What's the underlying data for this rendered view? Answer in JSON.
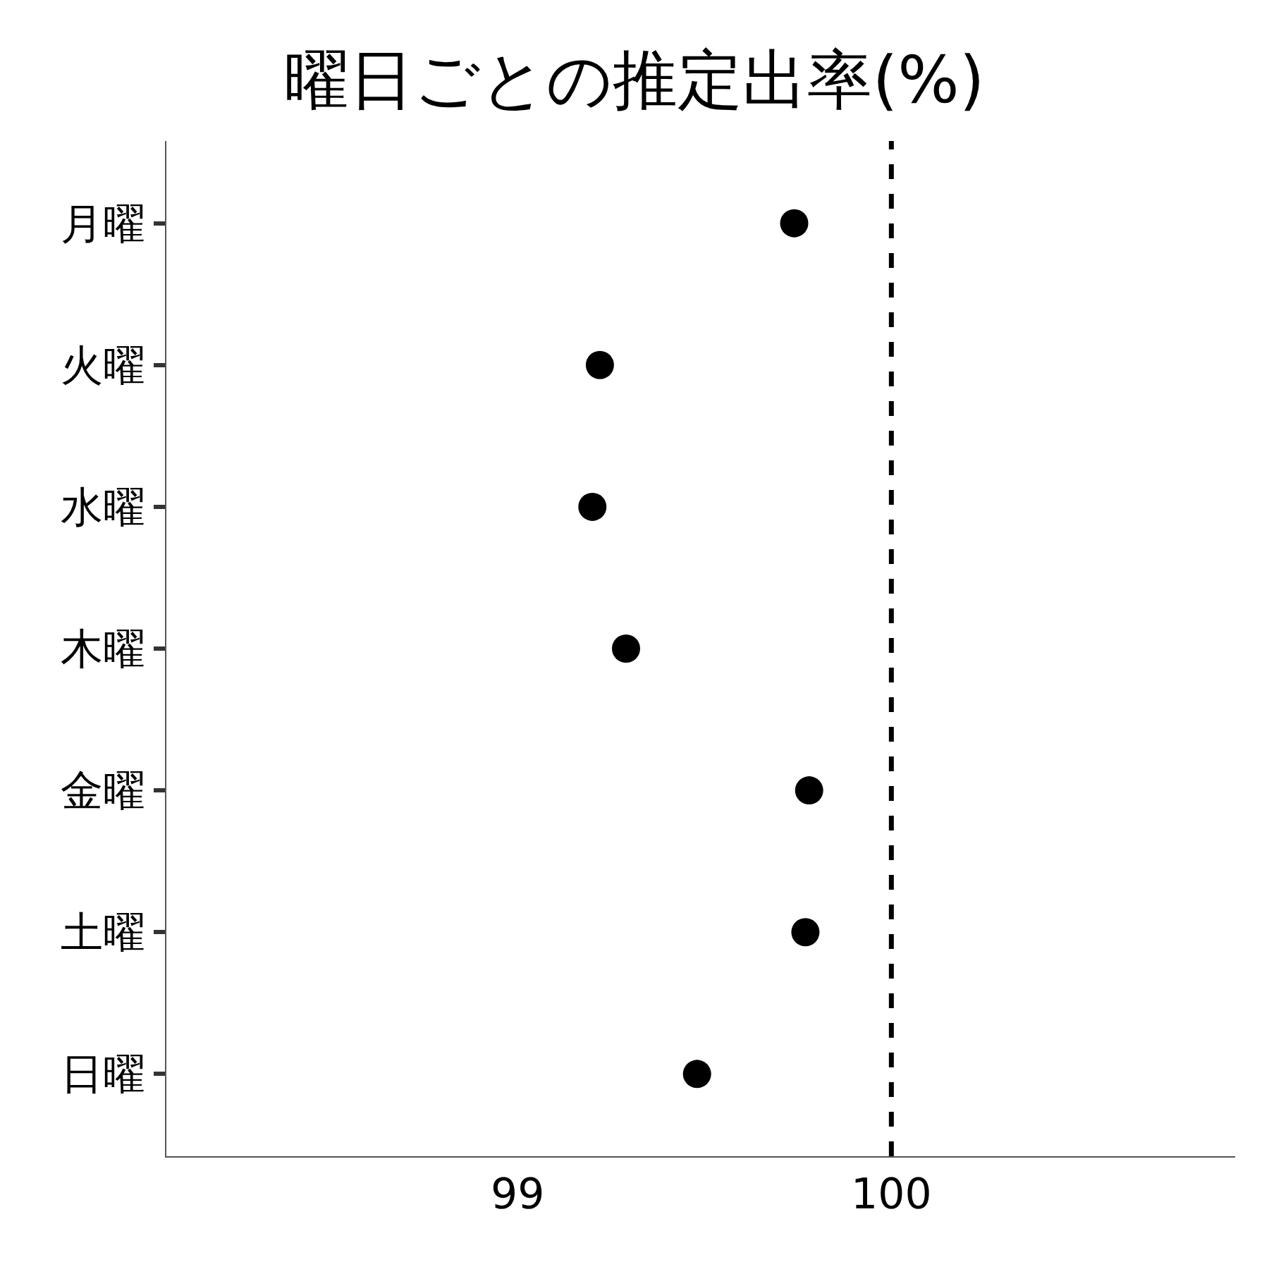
{
  "chart_data": {
    "type": "scatter",
    "title": "曜日ごとの推定出率(%)",
    "orientation": "horizontal",
    "categories": [
      "月曜",
      "火曜",
      "水曜",
      "木曜",
      "金曜",
      "土曜",
      "日曜"
    ],
    "values": [
      99.74,
      99.22,
      99.2,
      99.29,
      99.78,
      99.77,
      99.48
    ],
    "color": "#000000",
    "marker": "circle",
    "xlim": [
      98.06,
      100.92
    ],
    "xticks": [
      99,
      100
    ],
    "ref_lines": [
      {
        "axis": "x",
        "value": 100,
        "color": "#000000",
        "line_style": "dashed"
      }
    ],
    "grid": false
  }
}
